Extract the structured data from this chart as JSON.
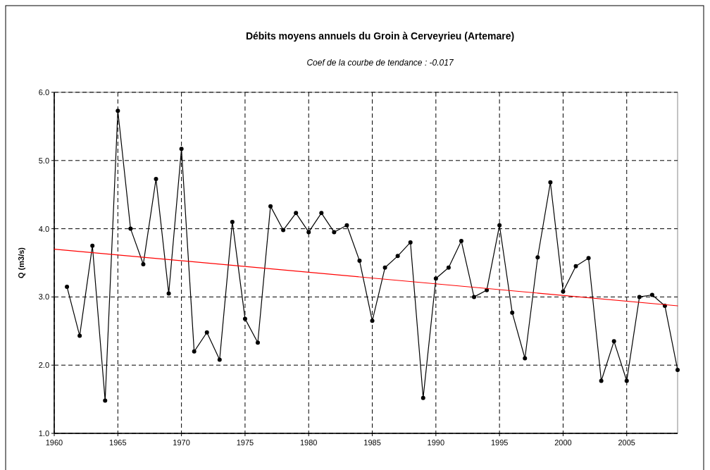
{
  "chart_data": {
    "type": "line",
    "title": "Débits moyens annuels du Groin à Cerveyrieu (Artemare)",
    "subtitle": "Coef de la courbe de tendance : -0.017",
    "ylabel": "Q (m3/s)",
    "x": [
      1961,
      1962,
      1963,
      1964,
      1965,
      1966,
      1967,
      1968,
      1969,
      1970,
      1971,
      1972,
      1973,
      1974,
      1975,
      1976,
      1977,
      1978,
      1979,
      1980,
      1981,
      1982,
      1983,
      1984,
      1985,
      1986,
      1987,
      1988,
      1989,
      1990,
      1991,
      1992,
      1993,
      1994,
      1995,
      1996,
      1997,
      1998,
      1999,
      2000,
      2001,
      2002,
      2003,
      2004,
      2005,
      2006,
      2007,
      2008,
      2009
    ],
    "series": [
      {
        "color": "#000000",
        "values": [
          3.15,
          2.43,
          3.75,
          1.48,
          5.73,
          4.0,
          3.48,
          4.73,
          3.05,
          5.17,
          2.2,
          2.48,
          2.08,
          4.1,
          2.68,
          2.33,
          4.33,
          3.98,
          4.23,
          3.95,
          4.23,
          3.95,
          4.05,
          3.53,
          2.65,
          3.43,
          3.6,
          3.8,
          1.52,
          3.27,
          3.43,
          3.82,
          3.0,
          3.1,
          4.05,
          2.77,
          2.1,
          3.58,
          4.68,
          3.08,
          3.45,
          3.57,
          1.77,
          2.35,
          1.77,
          3.0,
          3.03,
          2.87,
          1.93
        ]
      },
      {
        "type": "line",
        "color": "#ff0000",
        "marker": "none",
        "x": [
          1960,
          2009
        ],
        "values": [
          3.7,
          2.87
        ]
      }
    ],
    "xlim": [
      1960,
      2009
    ],
    "xticks": [
      1960,
      1965,
      1970,
      1975,
      1980,
      1985,
      1990,
      1995,
      2000,
      2005
    ],
    "ylim": [
      1.0,
      6.0
    ],
    "yticks": [
      {
        "value": 1,
        "label": "1.0"
      },
      {
        "value": 2,
        "label": "2.0"
      },
      {
        "value": 3,
        "label": "3.0"
      },
      {
        "value": 4,
        "label": "4.0"
      },
      {
        "value": 5,
        "label": "5.0"
      },
      {
        "value": 6,
        "label": "6.0"
      }
    ],
    "grid": true,
    "marker": "circle",
    "line_style": "solid"
  }
}
